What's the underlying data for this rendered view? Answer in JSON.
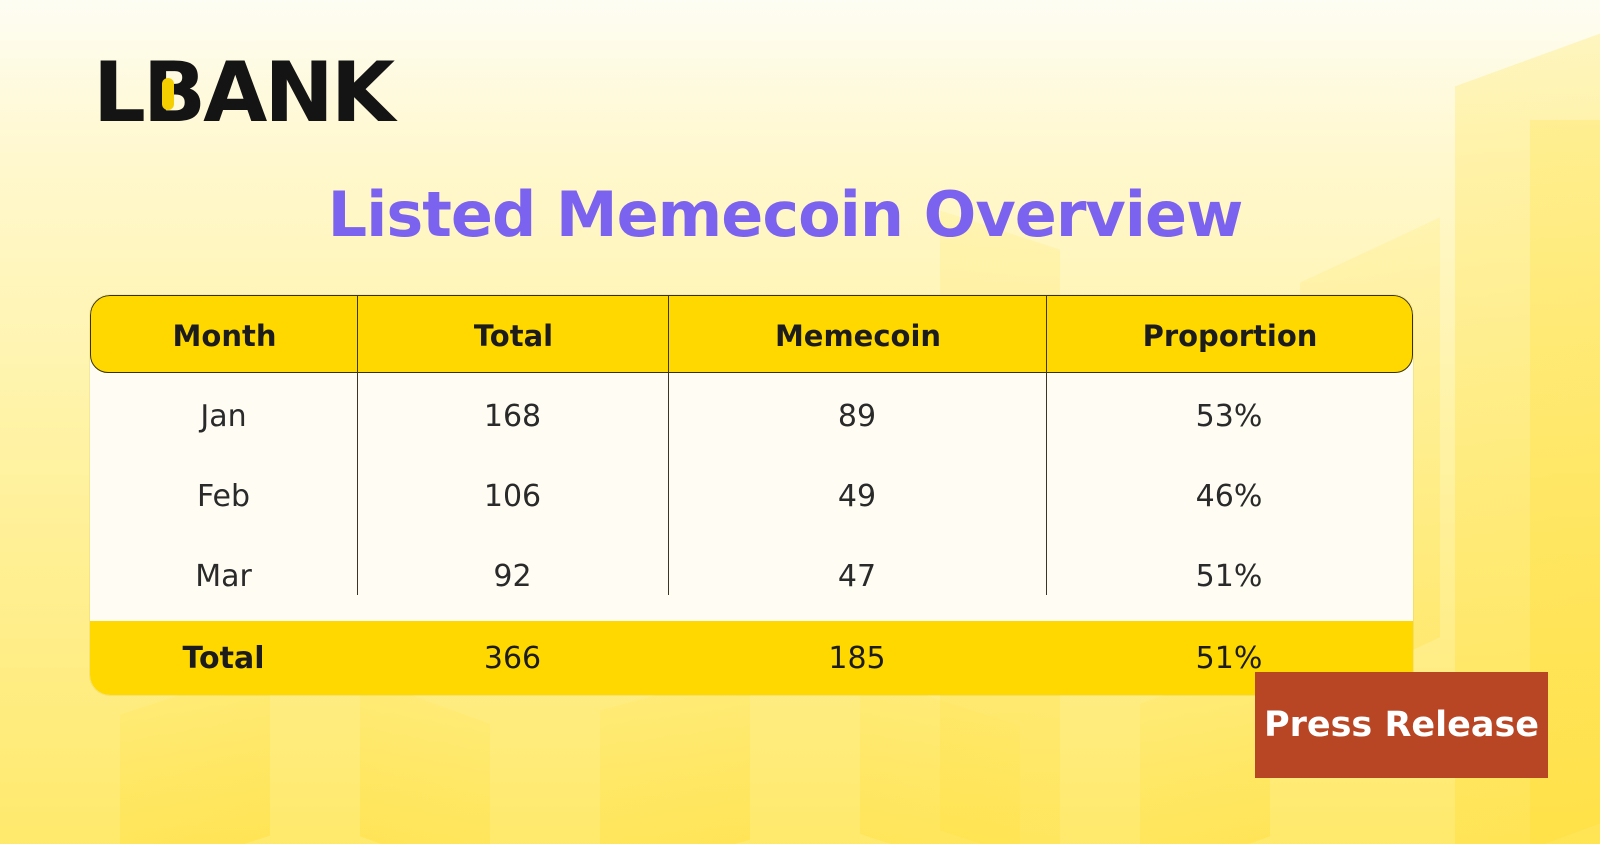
{
  "brand": {
    "logo_text_part1": "L",
    "logo_text_mark": "B",
    "logo_text_part2": "ANK",
    "logo_full": "LBANK"
  },
  "headline": "Listed Memecoin Overview",
  "table": {
    "headers": [
      "Month",
      "Total",
      "Memecoin",
      "Proportion"
    ],
    "rows": [
      [
        "Jan",
        "168",
        "89",
        "53%"
      ],
      [
        "Feb",
        "106",
        "49",
        "46%"
      ],
      [
        "Mar",
        "92",
        "47",
        "51%"
      ]
    ],
    "total_row": [
      "Total",
      "366",
      "185",
      "51%"
    ]
  },
  "badge": {
    "label": "Press Release"
  },
  "colors": {
    "header_yellow": "#ffd800",
    "headline_purple": "#7b63f0",
    "badge_red": "#b84624",
    "logo_black": "#141414",
    "logo_accent": "#f5cf00"
  }
}
